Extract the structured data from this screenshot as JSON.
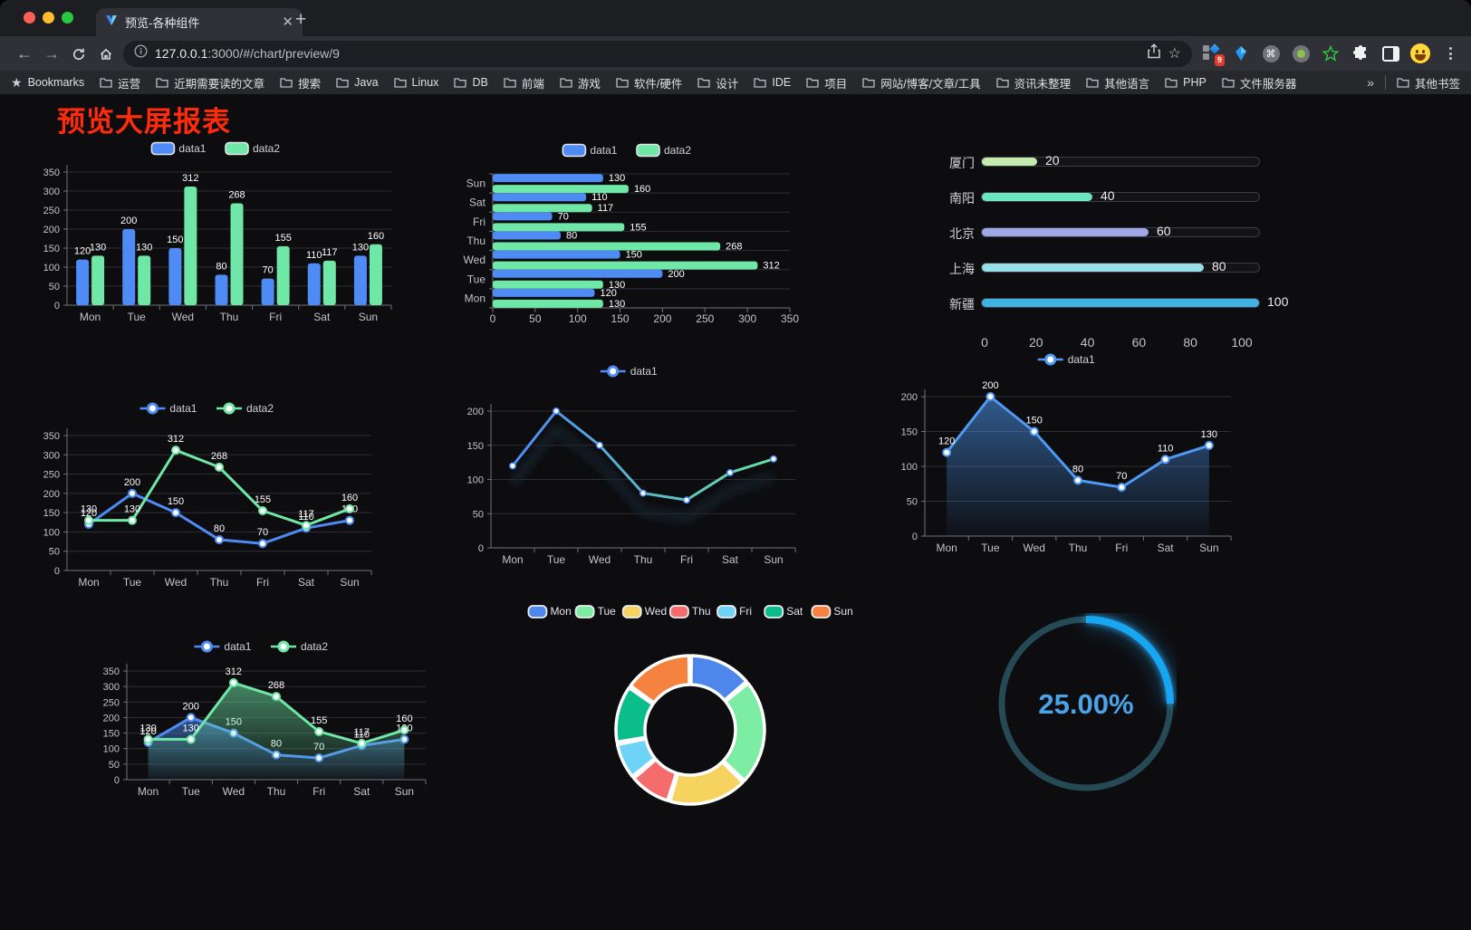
{
  "browser": {
    "tab_title": "预览-各种组件",
    "url_host": "127.0.0.1",
    "url_rest": ":3000/#/chart/preview/9",
    "extension_badge": "9",
    "bookmarks_label": "Bookmarks",
    "bookmarks": [
      "运营",
      "近期需要读的文章",
      "搜索",
      "Java",
      "Linux",
      "DB",
      "前端",
      "游戏",
      "软件/硬件",
      "设计",
      "IDE",
      "项目",
      "网站/博客/文章/工具",
      "资讯未整理",
      "其他语言",
      "PHP",
      "文件服务器"
    ],
    "overflow_glyph": "»",
    "other_bookmarks": "其他书签"
  },
  "page": {
    "title": "预览大屏报表",
    "title_color": "#fe2c0c",
    "background": "#0d0d10"
  },
  "chart_data": [
    {
      "name": "grouped-bar",
      "type": "bar",
      "categories": [
        "Mon",
        "Tue",
        "Wed",
        "Thu",
        "Fri",
        "Sat",
        "Sun"
      ],
      "series": [
        {
          "name": "data1",
          "color": "#4e8bf5",
          "values": [
            120,
            200,
            150,
            80,
            70,
            110,
            130
          ]
        },
        {
          "name": "data2",
          "color": "#6fe7a6",
          "values": [
            130,
            130,
            312,
            268,
            155,
            117,
            160
          ]
        }
      ],
      "ylim": [
        0,
        350
      ],
      "ytick_step": 50,
      "legend_position": "top",
      "value_labels": true
    },
    {
      "name": "horizontal-bar",
      "type": "bar-horizontal",
      "categories": [
        "Mon",
        "Tue",
        "Wed",
        "Thu",
        "Fri",
        "Sat",
        "Sun"
      ],
      "series": [
        {
          "name": "data1",
          "color": "#4e8bf5",
          "values": [
            120,
            200,
            150,
            80,
            70,
            110,
            130
          ]
        },
        {
          "name": "data2",
          "color": "#6fe7a6",
          "values": [
            130,
            130,
            312,
            268,
            155,
            117,
            160
          ]
        }
      ],
      "xlim": [
        0,
        350
      ],
      "xtick_step": 50,
      "legend_position": "top",
      "value_labels": true
    },
    {
      "name": "city-progress",
      "type": "progress",
      "items": [
        {
          "label": "厦门",
          "value": 20,
          "color": "#c4ebad"
        },
        {
          "label": "南阳",
          "value": 40,
          "color": "#6be6c1"
        },
        {
          "label": "北京",
          "value": 60,
          "color": "#a0a7e6"
        },
        {
          "label": "上海",
          "value": 80,
          "color": "#96dee8"
        },
        {
          "label": "新疆",
          "value": 100,
          "color": "#3fb1e3"
        }
      ],
      "xticks": [
        0,
        20,
        40,
        60,
        80,
        100
      ],
      "xlim": [
        0,
        100
      ]
    },
    {
      "name": "dual-line",
      "type": "line",
      "categories": [
        "Mon",
        "Tue",
        "Wed",
        "Thu",
        "Fri",
        "Sat",
        "Sun"
      ],
      "series": [
        {
          "name": "data1",
          "color": "#4e8bf5",
          "values": [
            120,
            200,
            150,
            80,
            70,
            110,
            130
          ]
        },
        {
          "name": "data2",
          "color": "#6fe7a6",
          "values": [
            130,
            130,
            312,
            268,
            155,
            117,
            160
          ]
        }
      ],
      "ylim": [
        0,
        350
      ],
      "ytick_step": 50,
      "legend_position": "top",
      "value_labels": true
    },
    {
      "name": "gradient-line",
      "type": "line",
      "categories": [
        "Mon",
        "Tue",
        "Wed",
        "Thu",
        "Fri",
        "Sat",
        "Sun"
      ],
      "series": [
        {
          "name": "data1",
          "color": "#4e8bf5",
          "color_end": "#67e0a3",
          "gradient_stroke": true,
          "shadow": true,
          "values": [
            120,
            200,
            150,
            80,
            70,
            110,
            130
          ]
        }
      ],
      "ylim": [
        0,
        200
      ],
      "ytick_step": 50,
      "legend_position": "top",
      "value_labels": false
    },
    {
      "name": "area-line",
      "type": "line",
      "categories": [
        "Mon",
        "Tue",
        "Wed",
        "Thu",
        "Fri",
        "Sat",
        "Sun"
      ],
      "series": [
        {
          "name": "data1",
          "color": "#4f9af5",
          "area": true,
          "values": [
            120,
            200,
            150,
            80,
            70,
            110,
            130
          ]
        }
      ],
      "ylim": [
        0,
        200
      ],
      "ytick_step": 50,
      "legend_position": "top",
      "value_labels": true
    },
    {
      "name": "dual-area-line",
      "type": "line",
      "categories": [
        "Mon",
        "Tue",
        "Wed",
        "Thu",
        "Fri",
        "Sat",
        "Sun"
      ],
      "series": [
        {
          "name": "data1",
          "color": "#4e8bf5",
          "area": true,
          "values": [
            120,
            200,
            150,
            80,
            70,
            110,
            130
          ]
        },
        {
          "name": "data2",
          "color": "#6fe7a6",
          "area": true,
          "values": [
            130,
            130,
            312,
            268,
            155,
            117,
            160
          ]
        }
      ],
      "ylim": [
        0,
        350
      ],
      "ytick_step": 50,
      "legend_position": "top",
      "value_labels": true
    },
    {
      "name": "weekday-donut",
      "type": "pie",
      "categories": [
        "Mon",
        "Tue",
        "Wed",
        "Thu",
        "Fri",
        "Sat",
        "Sun"
      ],
      "values": [
        120,
        200,
        150,
        80,
        70,
        110,
        130
      ],
      "colors": [
        "#4e86ec",
        "#7deda3",
        "#f5d35e",
        "#f56c6c",
        "#6fd3f7",
        "#0cbd8c",
        "#f5833f"
      ],
      "legend_position": "top",
      "inner_radius": 50,
      "outer_radius": 82
    },
    {
      "name": "percent-gauge",
      "type": "gauge",
      "value": 25,
      "max": 100,
      "label": "25.00%",
      "bar_color": "#17a6f2",
      "track_color": "#254a55",
      "text_color": "#4aa4ea"
    }
  ]
}
